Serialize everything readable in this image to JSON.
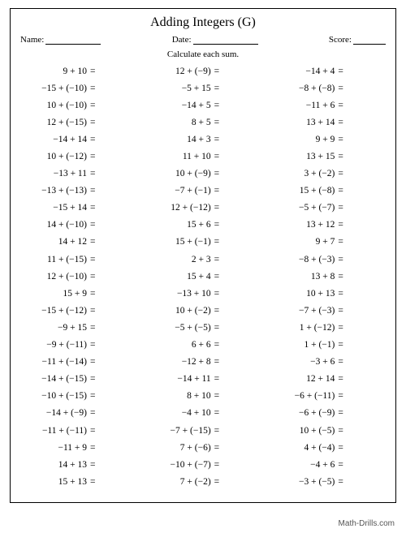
{
  "title": "Adding Integers (G)",
  "header": {
    "name_label": "Name:",
    "date_label": "Date:",
    "score_label": "Score:"
  },
  "instruction": "Calculate each sum.",
  "eq": "=",
  "columns": [
    [
      {
        "a": "9",
        "b": "10",
        "pb": false
      },
      {
        "a": "−15",
        "b": "−10",
        "pb": true
      },
      {
        "a": "10",
        "b": "−10",
        "pb": true
      },
      {
        "a": "12",
        "b": "−15",
        "pb": true
      },
      {
        "a": "−14",
        "b": "14",
        "pb": false
      },
      {
        "a": "10",
        "b": "−12",
        "pb": true
      },
      {
        "a": "−13",
        "b": "11",
        "pb": false
      },
      {
        "a": "−13",
        "b": "−13",
        "pb": true
      },
      {
        "a": "−15",
        "b": "14",
        "pb": false
      },
      {
        "a": "14",
        "b": "−10",
        "pb": true
      },
      {
        "a": "14",
        "b": "12",
        "pb": false
      },
      {
        "a": "11",
        "b": "−15",
        "pb": true
      },
      {
        "a": "12",
        "b": "−10",
        "pb": true
      },
      {
        "a": "15",
        "b": "9",
        "pb": false
      },
      {
        "a": "−15",
        "b": "−12",
        "pb": true
      },
      {
        "a": "−9",
        "b": "15",
        "pb": false
      },
      {
        "a": "−9",
        "b": "−11",
        "pb": true
      },
      {
        "a": "−11",
        "b": "−14",
        "pb": true
      },
      {
        "a": "−14",
        "b": "−15",
        "pb": true
      },
      {
        "a": "−10",
        "b": "−15",
        "pb": true
      },
      {
        "a": "−14",
        "b": "−9",
        "pb": true
      },
      {
        "a": "−11",
        "b": "−11",
        "pb": true
      },
      {
        "a": "−11",
        "b": "9",
        "pb": false
      },
      {
        "a": "14",
        "b": "13",
        "pb": false
      },
      {
        "a": "15",
        "b": "13",
        "pb": false
      }
    ],
    [
      {
        "a": "12",
        "b": "−9",
        "pb": true
      },
      {
        "a": "−5",
        "b": "15",
        "pb": false
      },
      {
        "a": "−14",
        "b": "5",
        "pb": false
      },
      {
        "a": "8",
        "b": "5",
        "pb": false
      },
      {
        "a": "14",
        "b": "3",
        "pb": false
      },
      {
        "a": "11",
        "b": "10",
        "pb": false
      },
      {
        "a": "10",
        "b": "−9",
        "pb": true
      },
      {
        "a": "−7",
        "b": "−1",
        "pb": true
      },
      {
        "a": "12",
        "b": "−12",
        "pb": true
      },
      {
        "a": "15",
        "b": "6",
        "pb": false
      },
      {
        "a": "15",
        "b": "−1",
        "pb": true
      },
      {
        "a": "2",
        "b": "3",
        "pb": false
      },
      {
        "a": "15",
        "b": "4",
        "pb": false
      },
      {
        "a": "−13",
        "b": "10",
        "pb": false
      },
      {
        "a": "10",
        "b": "−2",
        "pb": true
      },
      {
        "a": "−5",
        "b": "−5",
        "pb": true
      },
      {
        "a": "6",
        "b": "6",
        "pb": false
      },
      {
        "a": "−12",
        "b": "8",
        "pb": false
      },
      {
        "a": "−14",
        "b": "11",
        "pb": false
      },
      {
        "a": "8",
        "b": "10",
        "pb": false
      },
      {
        "a": "−4",
        "b": "10",
        "pb": false
      },
      {
        "a": "−7",
        "b": "−15",
        "pb": true
      },
      {
        "a": "7",
        "b": "−6",
        "pb": true
      },
      {
        "a": "−10",
        "b": "−7",
        "pb": true
      },
      {
        "a": "7",
        "b": "−2",
        "pb": true
      }
    ],
    [
      {
        "a": "−14",
        "b": "4",
        "pb": false
      },
      {
        "a": "−8",
        "b": "−8",
        "pb": true
      },
      {
        "a": "−11",
        "b": "6",
        "pb": false
      },
      {
        "a": "13",
        "b": "14",
        "pb": false
      },
      {
        "a": "9",
        "b": "9",
        "pb": false
      },
      {
        "a": "13",
        "b": "15",
        "pb": false
      },
      {
        "a": "3",
        "b": "−2",
        "pb": true
      },
      {
        "a": "15",
        "b": "−8",
        "pb": true
      },
      {
        "a": "−5",
        "b": "−7",
        "pb": true
      },
      {
        "a": "13",
        "b": "12",
        "pb": false
      },
      {
        "a": "9",
        "b": "7",
        "pb": false
      },
      {
        "a": "−8",
        "b": "−3",
        "pb": true
      },
      {
        "a": "13",
        "b": "8",
        "pb": false
      },
      {
        "a": "10",
        "b": "13",
        "pb": false
      },
      {
        "a": "−7",
        "b": "−3",
        "pb": true
      },
      {
        "a": "1",
        "b": "−12",
        "pb": true
      },
      {
        "a": "1",
        "b": "−1",
        "pb": true
      },
      {
        "a": "−3",
        "b": "6",
        "pb": false
      },
      {
        "a": "12",
        "b": "14",
        "pb": false
      },
      {
        "a": "−6",
        "b": "−11",
        "pb": true
      },
      {
        "a": "−6",
        "b": "−9",
        "pb": true
      },
      {
        "a": "10",
        "b": "−5",
        "pb": true
      },
      {
        "a": "4",
        "b": "−4",
        "pb": true
      },
      {
        "a": "−4",
        "b": "6",
        "pb": false
      },
      {
        "a": "−3",
        "b": "−5",
        "pb": true
      }
    ]
  ],
  "footer": "Math-Drills.com"
}
